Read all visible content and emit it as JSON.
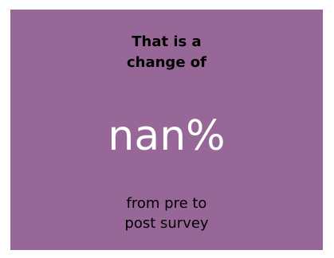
{
  "card": {
    "background_color": "#976897",
    "heading_line1": "That is a",
    "heading_line2": "change of",
    "value": "nan%",
    "footer_line1": "from pre to",
    "footer_line2": "post survey"
  }
}
